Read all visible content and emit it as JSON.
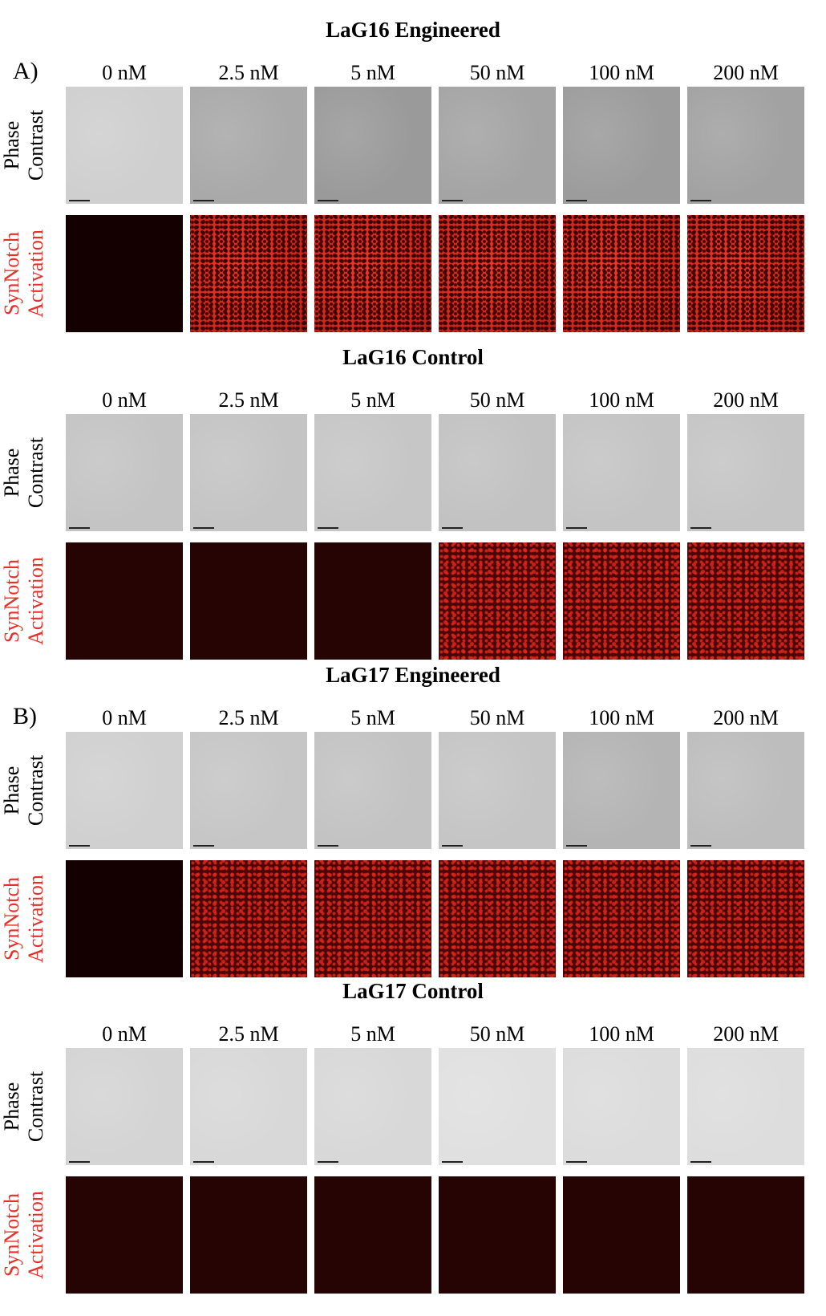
{
  "panels": [
    {
      "label": "A)",
      "title": "LaG16 Engineered",
      "concentrations": [
        "0 nM",
        "2.5 nM",
        "5 nM",
        "50 nM",
        "100 nM",
        "200 nM"
      ],
      "row_labels": [
        [
          "Phase",
          "Contrast"
        ],
        [
          "SynNotch",
          "Activation"
        ]
      ]
    },
    {
      "title": "LaG16 Control",
      "concentrations": [
        "0 nM",
        "2.5 nM",
        "5 nM",
        "50 nM",
        "100 nM",
        "200 nM"
      ],
      "row_labels": [
        [
          "Phase",
          "Contrast"
        ],
        [
          "SynNotch",
          "Activation"
        ]
      ]
    },
    {
      "label": "B)",
      "title": "LaG17 Engineered",
      "concentrations": [
        "0 nM",
        "2.5 nM",
        "5 nM",
        "50 nM",
        "100 nM",
        "200 nM"
      ],
      "row_labels": [
        [
          "Phase",
          "Contrast"
        ],
        [
          "SynNotch",
          "Activation"
        ]
      ]
    },
    {
      "title": "LaG17 Control",
      "concentrations": [
        "0 nM",
        "2.5 nM",
        "5 nM",
        "50 nM",
        "100 nM",
        "200 nM"
      ],
      "row_labels": [
        [
          "Phase",
          "Contrast"
        ],
        [
          "SynNotch",
          "Activation"
        ]
      ]
    }
  ]
}
